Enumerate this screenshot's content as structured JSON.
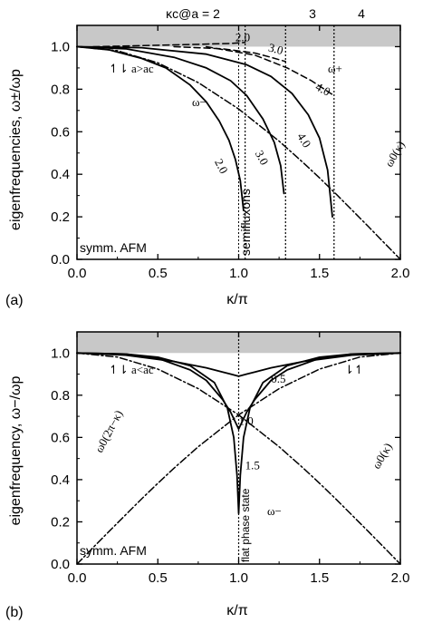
{
  "chart_data": [
    {
      "id": "a",
      "type": "line",
      "panel_label": "(a)",
      "xlabel": "κ/π",
      "ylabel": "eigenfrequencies, ω±/ωp",
      "xlim": [
        0,
        2
      ],
      "ylim": [
        0,
        1.1
      ],
      "xticks": [
        "0.0",
        "0.5",
        "1.0",
        "1.5",
        "2.0"
      ],
      "yticks": [
        "0.0",
        "0.2",
        "0.4",
        "0.6",
        "0.8",
        "1.0"
      ],
      "top_label": "κc@a = 2",
      "top_labels": [
        "3",
        "4"
      ],
      "kappa_c": [
        1.04,
        1.29,
        1.59
      ],
      "shaded_band": [
        1.0,
        1.1
      ],
      "annotations": {
        "regime": "↿⇂ a>ac",
        "omega_minus": "ω−",
        "omega_plus": "ω+",
        "omega0": "ω0(κ)",
        "semifluxons": "semifluxons",
        "system": "symm. AFM"
      },
      "series": [
        {
          "label": "2.0",
          "style": "solid",
          "x": [
            0,
            0.2,
            0.4,
            0.55,
            0.7,
            0.8,
            0.88,
            0.94,
            0.98,
            1.01,
            1.03
          ],
          "y": [
            1.0,
            0.985,
            0.945,
            0.9,
            0.82,
            0.74,
            0.65,
            0.56,
            0.47,
            0.37,
            0.23
          ]
        },
        {
          "label": "3.0",
          "style": "solid",
          "x": [
            0,
            0.3,
            0.6,
            0.8,
            0.95,
            1.05,
            1.15,
            1.22,
            1.26,
            1.28
          ],
          "y": [
            1.0,
            0.99,
            0.95,
            0.9,
            0.84,
            0.77,
            0.66,
            0.55,
            0.44,
            0.31
          ]
        },
        {
          "label": "4.0",
          "style": "solid",
          "x": [
            0,
            0.4,
            0.8,
            1.05,
            1.2,
            1.33,
            1.43,
            1.5,
            1.55,
            1.58
          ],
          "y": [
            1.0,
            0.995,
            0.965,
            0.915,
            0.86,
            0.78,
            0.68,
            0.57,
            0.42,
            0.2
          ]
        },
        {
          "label": "2.0",
          "style": "dashed",
          "x": [
            0.1,
            0.4,
            0.7,
            0.95,
            1.04
          ],
          "y": [
            1.0,
            1.005,
            1.01,
            1.015,
            1.02
          ]
        },
        {
          "label": "3.0",
          "style": "dashed",
          "x": [
            0.6,
            0.9,
            1.1,
            1.2,
            1.29
          ],
          "y": [
            1.0,
            0.99,
            0.97,
            0.95,
            0.93
          ]
        },
        {
          "label": "4.0",
          "style": "dashed",
          "x": [
            0.8,
            1.1,
            1.3,
            1.45,
            1.59
          ],
          "y": [
            1.0,
            0.96,
            0.9,
            0.84,
            0.77
          ]
        },
        {
          "label": "ω0(κ)",
          "style": "dashdot",
          "x": [
            0,
            0.25,
            0.5,
            0.75,
            1.0,
            1.25,
            1.4,
            1.5,
            1.6,
            1.7,
            1.8,
            1.9,
            1.96,
            2.0
          ],
          "y": [
            1.0,
            0.981,
            0.924,
            0.831,
            0.707,
            0.556,
            0.454,
            0.383,
            0.309,
            0.233,
            0.156,
            0.078,
            0.031,
            0.0
          ]
        }
      ]
    },
    {
      "id": "b",
      "type": "line",
      "panel_label": "(b)",
      "xlabel": "κ/π",
      "ylabel": "eigenfrequency, ω−/ωp",
      "xlim": [
        0,
        2
      ],
      "ylim": [
        0,
        1.1
      ],
      "xticks": [
        "0.0",
        "0.5",
        "1.0",
        "1.5",
        "2.0"
      ],
      "yticks": [
        "0.0",
        "0.2",
        "0.4",
        "0.6",
        "0.8",
        "1.0"
      ],
      "shaded_band": [
        1.0,
        1.1
      ],
      "annotations": {
        "regime": "↿⇂ a<ac",
        "updown": "⇂↿",
        "omega_minus": "ω−",
        "omega0_left": "ω0(2π−κ)",
        "omega0_right": "ω0(κ)",
        "flat_phase": "flat phase state",
        "system": "symm. AFM"
      },
      "series": [
        {
          "label": "0.5",
          "style": "solid",
          "x": [
            0,
            0.3,
            0.6,
            0.8,
            0.9,
            0.95,
            1.0,
            1.05,
            1.1,
            1.2,
            1.4,
            1.7,
            2.0
          ],
          "y": [
            1.0,
            0.99,
            0.96,
            0.93,
            0.91,
            0.9,
            0.89,
            0.9,
            0.91,
            0.93,
            0.96,
            0.99,
            1.0
          ]
        },
        {
          "label": "1.0",
          "style": "solid",
          "x": [
            0,
            0.3,
            0.5,
            0.7,
            0.8,
            0.9,
            0.95,
            1.0,
            1.05,
            1.1,
            1.2,
            1.3,
            1.5,
            1.7,
            2.0
          ],
          "y": [
            1.0,
            0.995,
            0.975,
            0.92,
            0.87,
            0.78,
            0.72,
            0.64,
            0.72,
            0.78,
            0.87,
            0.92,
            0.975,
            0.995,
            1.0
          ]
        },
        {
          "label": "1.5",
          "style": "solid",
          "x": [
            0,
            0.3,
            0.5,
            0.7,
            0.85,
            0.93,
            0.97,
            0.99,
            1.0,
            1.01,
            1.03,
            1.07,
            1.15,
            1.3,
            1.5,
            1.7,
            2.0
          ],
          "y": [
            1.0,
            0.995,
            0.98,
            0.94,
            0.86,
            0.74,
            0.6,
            0.42,
            0.24,
            0.42,
            0.6,
            0.74,
            0.86,
            0.94,
            0.98,
            0.995,
            1.0
          ]
        },
        {
          "label": "ω0(2π−κ)",
          "style": "dashdot",
          "x": [
            0.0,
            0.04,
            0.1,
            0.2,
            0.3,
            0.4,
            0.5,
            0.6,
            0.75,
            1.0,
            1.25,
            1.5,
            1.75,
            2.0
          ],
          "y": [
            0.0,
            0.031,
            0.078,
            0.156,
            0.233,
            0.309,
            0.383,
            0.454,
            0.556,
            0.707,
            0.831,
            0.924,
            0.981,
            1.0
          ]
        },
        {
          "label": "ω0(κ)",
          "style": "dashdot",
          "x": [
            0.0,
            0.25,
            0.5,
            0.75,
            1.0,
            1.25,
            1.4,
            1.5,
            1.6,
            1.7,
            1.8,
            1.9,
            1.96,
            2.0
          ],
          "y": [
            1.0,
            0.981,
            0.924,
            0.831,
            0.707,
            0.556,
            0.454,
            0.383,
            0.309,
            0.233,
            0.156,
            0.078,
            0.031,
            0.0
          ]
        }
      ]
    }
  ]
}
